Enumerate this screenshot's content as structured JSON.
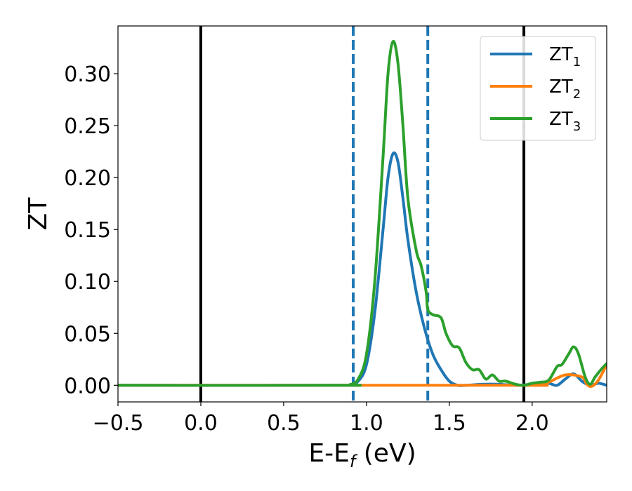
{
  "chart_data": {
    "type": "line",
    "xlabel": {
      "main": "E-E",
      "sub": "f",
      "unit": " (eV)"
    },
    "ylabel": "ZT",
    "xlim": [
      -0.5,
      2.45
    ],
    "ylim": [
      -0.016,
      0.346
    ],
    "x_ticks": [
      -0.5,
      0.0,
      0.5,
      1.0,
      1.5,
      2.0
    ],
    "x_tick_labels": [
      "−0.5",
      "0.0",
      "0.5",
      "1.0",
      "1.5",
      "2.0"
    ],
    "y_ticks": [
      0.0,
      0.05,
      0.1,
      0.15,
      0.2,
      0.25,
      0.3
    ],
    "y_tick_labels": [
      "0.00",
      "0.05",
      "0.10",
      "0.15",
      "0.20",
      "0.25",
      "0.30"
    ],
    "grid": false,
    "legend_position": "top-right",
    "vlines": [
      {
        "x": 0.0,
        "color": "#000000",
        "style": "solid"
      },
      {
        "x": 1.95,
        "color": "#000000",
        "style": "solid"
      },
      {
        "x": 0.92,
        "color": "#1f77b4",
        "style": "dashed"
      },
      {
        "x": 1.37,
        "color": "#1f77b4",
        "style": "dashed"
      }
    ],
    "series": [
      {
        "name": "ZT",
        "subscript": "1",
        "color": "#1f77b4",
        "x": [
          -0.5,
          0.85,
          0.9,
          0.95,
          1.0,
          1.05,
          1.1,
          1.13,
          1.16,
          1.19,
          1.22,
          1.25,
          1.3,
          1.35,
          1.4,
          1.45,
          1.5,
          1.55,
          1.6,
          1.7,
          1.8,
          1.9,
          2.0,
          2.05,
          2.1,
          2.15,
          2.2,
          2.25,
          2.3,
          2.35,
          2.4,
          2.45
        ],
        "y": [
          0.0,
          0.0,
          0.0005,
          0.004,
          0.02,
          0.07,
          0.15,
          0.2,
          0.223,
          0.215,
          0.18,
          0.14,
          0.09,
          0.055,
          0.03,
          0.015,
          0.004,
          0.0,
          0.0,
          0.001,
          0.001,
          0.0,
          0.001,
          0.002,
          0.002,
          0.0,
          0.006,
          0.011,
          0.004,
          0.0,
          0.002,
          0.0
        ]
      },
      {
        "name": "ZT",
        "subscript": "2",
        "color": "#ff7f0e",
        "x": [
          -0.5,
          1.9,
          1.95,
          2.0,
          2.05,
          2.1,
          2.2,
          2.3,
          2.33,
          2.36,
          2.4,
          2.45
        ],
        "y": [
          0.0,
          0.0,
          0.0,
          0.001,
          0.002,
          0.003,
          0.01,
          0.008,
          0.001,
          -0.001,
          0.005,
          0.02
        ]
      },
      {
        "name": "ZT",
        "subscript": "3",
        "color": "#2ca02c",
        "x": [
          -0.5,
          0.85,
          0.9,
          0.95,
          1.0,
          1.05,
          1.1,
          1.13,
          1.16,
          1.19,
          1.22,
          1.25,
          1.3,
          1.33,
          1.36,
          1.37,
          1.4,
          1.45,
          1.48,
          1.52,
          1.56,
          1.6,
          1.64,
          1.68,
          1.72,
          1.76,
          1.8,
          1.84,
          1.9,
          1.95,
          2.0,
          2.05,
          2.1,
          2.15,
          2.18,
          2.22,
          2.25,
          2.28,
          2.32,
          2.35,
          2.38,
          2.42,
          2.45
        ],
        "y": [
          0.0,
          0.0,
          0.0006,
          0.006,
          0.03,
          0.1,
          0.22,
          0.3,
          0.331,
          0.31,
          0.25,
          0.18,
          0.13,
          0.115,
          0.09,
          0.073,
          0.068,
          0.065,
          0.05,
          0.038,
          0.036,
          0.022,
          0.015,
          0.015,
          0.006,
          0.01,
          0.004,
          0.004,
          0.001,
          0.0,
          0.002,
          0.003,
          0.005,
          0.018,
          0.02,
          0.03,
          0.037,
          0.03,
          0.008,
          0.001,
          0.008,
          0.016,
          0.021
        ]
      }
    ]
  }
}
